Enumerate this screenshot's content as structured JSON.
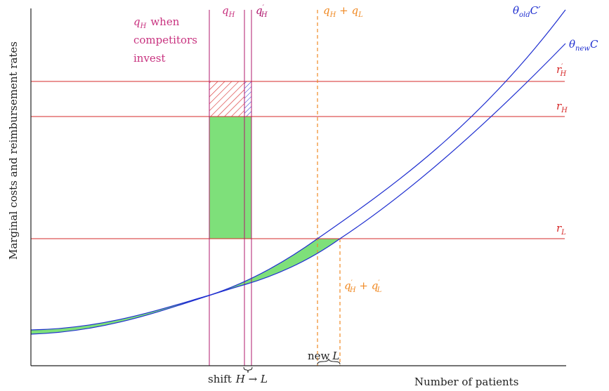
{
  "colors": {
    "rate_line": "#d62828",
    "cost_curve": "#1f2fd0",
    "q_line": "#b0186e",
    "q_label": "#c8327f",
    "sum_line": "#f08a24",
    "green_fill": "#7ee07a",
    "axis": "#222222"
  },
  "labels": {
    "y_axis": "Marginal costs and reimbursement rates",
    "x_axis": "Number of patients",
    "qh_when": "when",
    "competitors": "competitors",
    "invest": "invest",
    "qh": "q",
    "qh_sub": "H",
    "qh_prime": "q",
    "qh_prime_sub": "H",
    "qh_prime_mark": "′",
    "sum_top_q1": "q",
    "sum_top_sub1": "H",
    "sum_top_plus": " + ",
    "sum_top_q2": "q",
    "sum_top_sub2": "L",
    "sum_bottom_q1": "q",
    "sum_bottom_sub1": "H",
    "sum_bottom_plus": " + ",
    "sum_bottom_q2": "q",
    "sum_bottom_sub2": "L",
    "theta": "θ",
    "old_sub": "old",
    "new_sub": "new",
    "c_old": "C",
    "c_old_prime": "′",
    "c_new": "C",
    "r": "r",
    "rh_sub": "H",
    "rl_sub": "L",
    "shift": "shift",
    "shift_h": "H",
    "shift_arrow": " → ",
    "shift_l": "L",
    "new": "new",
    "new_l": "L"
  }
}
